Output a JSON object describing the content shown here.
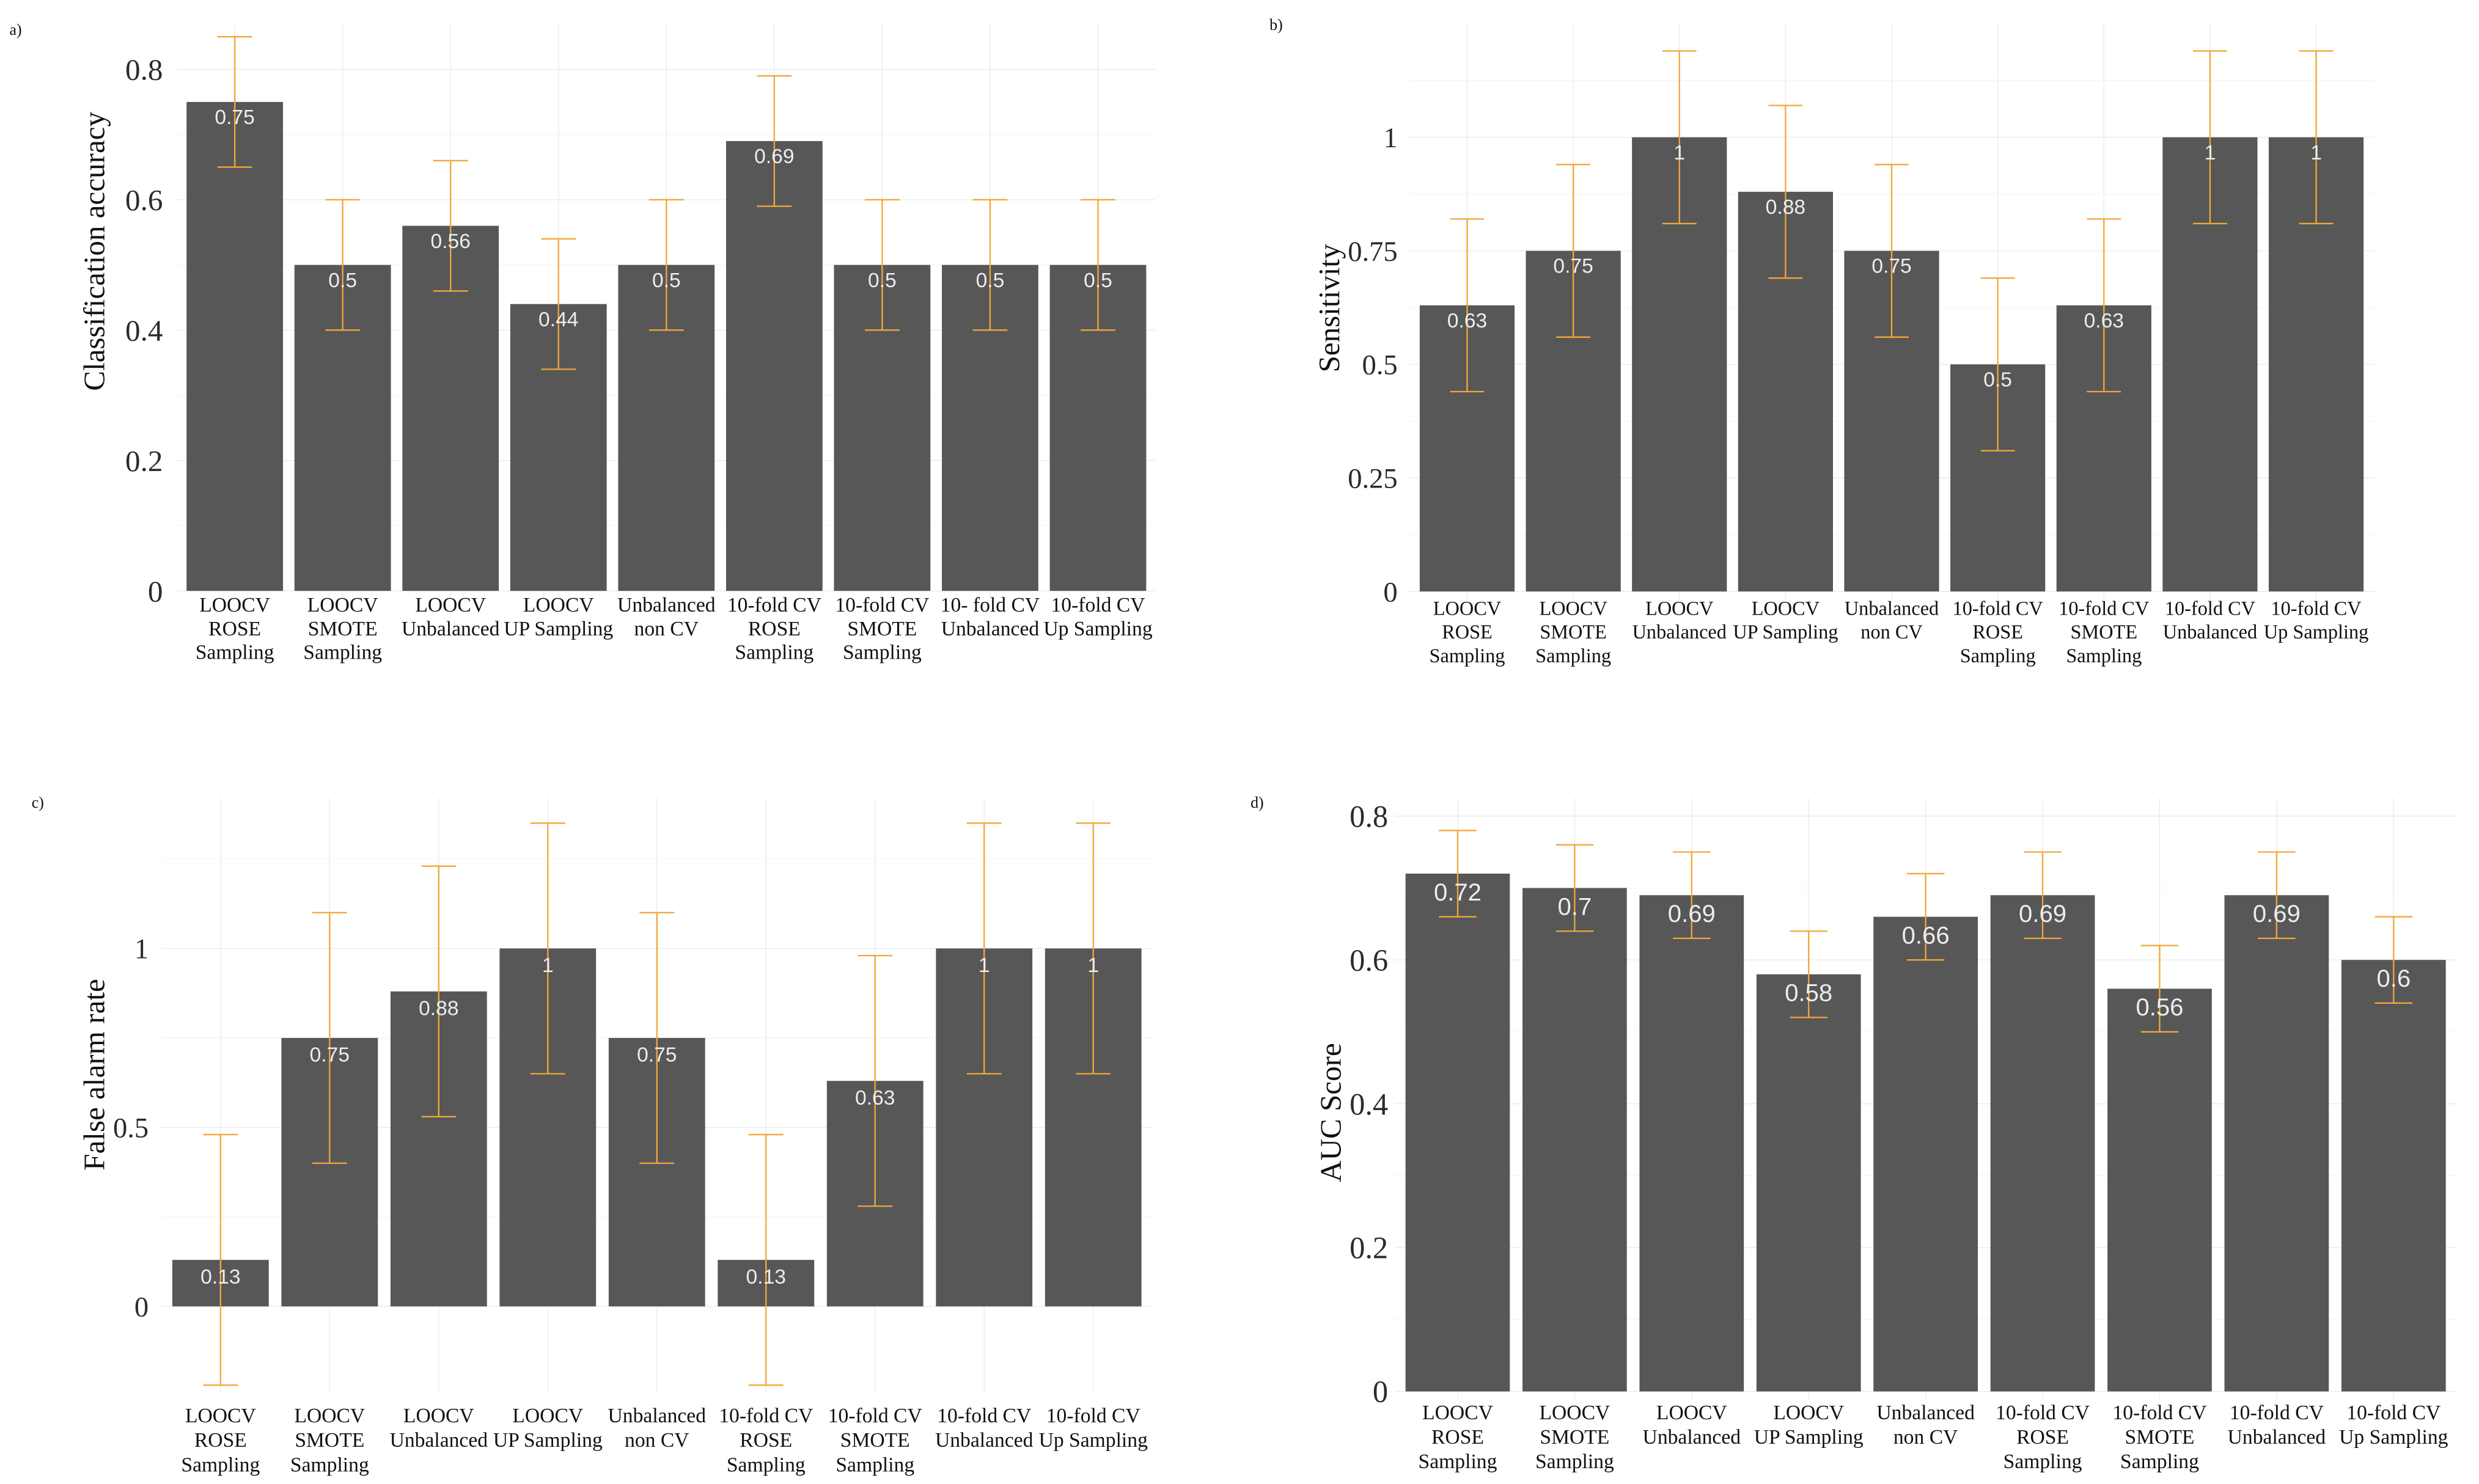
{
  "colors": {
    "bar": "#575757",
    "error_bar": "#F2A73A",
    "data_label": "#EDEDED",
    "grid_major": "#EBEBEB",
    "grid_minor": "#F4F4F4"
  },
  "chart_data": [
    {
      "panel": "a)",
      "type": "bar",
      "ylabel": "Classification accuracy",
      "categories": [
        [
          "LOOCV",
          "ROSE",
          "Sampling"
        ],
        [
          "LOOCV",
          "SMOTE",
          "Sampling"
        ],
        [
          "LOOCV",
          "Unbalanced"
        ],
        [
          "LOOCV",
          "UP Sampling"
        ],
        [
          "Unbalanced",
          "non CV"
        ],
        [
          "10-fold CV",
          "ROSE",
          "Sampling"
        ],
        [
          "10-fold CV",
          "SMOTE",
          "Sampling"
        ],
        [
          "10- fold CV",
          "Unbalanced"
        ],
        [
          "10-fold CV",
          "Up Sampling"
        ]
      ],
      "values": [
        0.75,
        0.5,
        0.56,
        0.44,
        0.5,
        0.69,
        0.5,
        0.5,
        0.5
      ],
      "labels": [
        "0.75",
        "0.5",
        "0.56",
        "0.44",
        "0.5",
        "0.69",
        "0.5",
        "0.5",
        "0.5"
      ],
      "error_lower": [
        0.65,
        0.4,
        0.46,
        0.34,
        0.4,
        0.59,
        0.4,
        0.4,
        0.4
      ],
      "error_upper": [
        0.85,
        0.6,
        0.66,
        0.54,
        0.6,
        0.79,
        0.6,
        0.6,
        0.6
      ],
      "yticks": [
        0,
        0.2,
        0.4,
        0.6,
        0.8
      ],
      "ylim": [
        -0.01,
        0.87
      ],
      "grid": true
    },
    {
      "panel": "b)",
      "type": "bar",
      "ylabel": "Sensitivity",
      "categories": [
        [
          "LOOCV",
          "ROSE",
          "Sampling"
        ],
        [
          "LOOCV",
          "SMOTE",
          "Sampling"
        ],
        [
          "LOOCV",
          "Unbalanced"
        ],
        [
          "LOOCV",
          "UP Sampling"
        ],
        [
          "Unbalanced",
          "non CV"
        ],
        [
          "10-fold CV",
          "ROSE",
          "Sampling"
        ],
        [
          "10-fold CV",
          "SMOTE",
          "Sampling"
        ],
        [
          "10-fold CV",
          "Unbalanced"
        ],
        [
          "10-fold CV",
          "Up Sampling"
        ]
      ],
      "values": [
        0.63,
        0.75,
        1,
        0.88,
        0.75,
        0.5,
        0.63,
        1,
        1
      ],
      "labels": [
        "0.63",
        "0.75",
        "1",
        "0.88",
        "0.75",
        "0.5",
        "0.63",
        "1",
        "1"
      ],
      "error_lower": [
        0.44,
        0.56,
        0.81,
        0.69,
        0.56,
        0.31,
        0.44,
        0.81,
        0.81
      ],
      "error_upper": [
        0.82,
        0.94,
        1.19,
        1.07,
        0.94,
        0.69,
        0.82,
        1.19,
        1.19
      ],
      "yticks": [
        0,
        0.25,
        0.5,
        0.75,
        1
      ],
      "ylim": [
        -0.02,
        1.25
      ],
      "grid": true
    },
    {
      "panel": "c)",
      "type": "bar",
      "ylabel": "False alarm rate",
      "categories": [
        [
          "LOOCV",
          "ROSE",
          "Sampling"
        ],
        [
          "LOOCV",
          "SMOTE",
          "Sampling"
        ],
        [
          "LOOCV",
          "Unbalanced"
        ],
        [
          "LOOCV",
          "UP Sampling"
        ],
        [
          "Unbalanced",
          "non CV"
        ],
        [
          "10-fold CV",
          "ROSE",
          "Sampling"
        ],
        [
          "10-fold CV",
          "SMOTE",
          "Sampling"
        ],
        [
          "10-fold CV",
          "Unbalanced"
        ],
        [
          "10-fold CV",
          "Up Sampling"
        ]
      ],
      "values": [
        0.13,
        0.75,
        0.88,
        1,
        0.75,
        0.13,
        0.63,
        1,
        1
      ],
      "labels": [
        "0.13",
        "0.75",
        "0.88",
        "1",
        "0.75",
        "0.13",
        "0.63",
        "1",
        "1"
      ],
      "error_lower": [
        -0.22,
        0.4,
        0.53,
        0.65,
        0.4,
        -0.22,
        0.28,
        0.65,
        0.65
      ],
      "error_upper": [
        0.48,
        1.1,
        1.23,
        1.35,
        1.1,
        0.48,
        0.98,
        1.35,
        1.35
      ],
      "yticks": [
        0,
        0.5,
        1
      ],
      "ylim": [
        -0.24,
        1.42
      ],
      "grid": true
    },
    {
      "panel": "d)",
      "type": "bar",
      "ylabel": "AUC Score",
      "categories": [
        [
          "LOOCV",
          "ROSE",
          "Sampling"
        ],
        [
          "LOOCV",
          "SMOTE",
          "Sampling"
        ],
        [
          "LOOCV",
          "Unbalanced"
        ],
        [
          "LOOCV",
          "UP Sampling"
        ],
        [
          "Unbalanced",
          "non CV"
        ],
        [
          "10-fold CV",
          "ROSE",
          "Sampling"
        ],
        [
          "10-fold CV",
          "SMOTE",
          "Sampling"
        ],
        [
          "10-fold CV",
          "Unbalanced"
        ],
        [
          "10-fold CV",
          "Up Sampling"
        ]
      ],
      "values": [
        0.72,
        0.7,
        0.69,
        0.58,
        0.66,
        0.69,
        0.56,
        0.69,
        0.6
      ],
      "labels": [
        "0.72",
        "0.7",
        "0.69",
        "0.58",
        "0.66",
        "0.69",
        "0.56",
        "0.69",
        "0.6"
      ],
      "error_lower": [
        0.66,
        0.64,
        0.63,
        0.52,
        0.6,
        0.63,
        0.5,
        0.63,
        0.54
      ],
      "error_upper": [
        0.78,
        0.76,
        0.75,
        0.64,
        0.72,
        0.75,
        0.62,
        0.75,
        0.66
      ],
      "yticks": [
        0,
        0.2,
        0.4,
        0.6,
        0.8
      ],
      "ylim": [
        -0.01,
        0.825
      ],
      "grid": true
    }
  ]
}
